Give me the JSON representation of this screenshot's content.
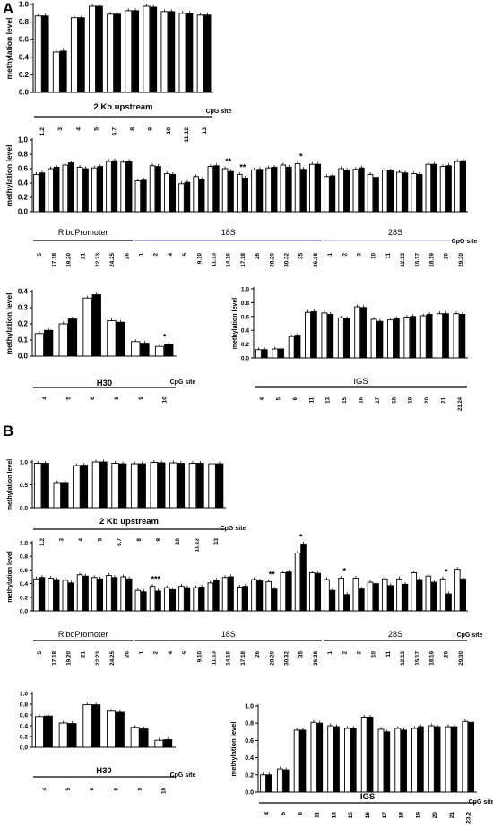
{
  "panels": [
    {
      "letter": "A"
    },
    {
      "letter": "B"
    }
  ],
  "colors": {
    "open_bar": "#ffffff",
    "filled_bar": "#000000",
    "outline": "#000000",
    "riboPromoter_line": "#000000",
    "s18_line": "#7b68c8",
    "s28_line": "#b8b8e6",
    "h30_line": "#000000",
    "igs_line": "#000000",
    "upstream_line": "#000000"
  },
  "chart_data": [
    {
      "id": "A-upstream",
      "panel": "A",
      "type": "bar",
      "ylabel": "methylation level",
      "ylim": [
        0,
        1.0
      ],
      "yticks": [
        0.0,
        0.2,
        0.4,
        0.6,
        0.8,
        1.0
      ],
      "xlabel": "CpG site",
      "categories": [
        "1.2",
        "3",
        "4",
        "5",
        "6.7",
        "8",
        "9",
        "10",
        "11.12",
        "13"
      ],
      "series": [
        {
          "fill": "open",
          "values": [
            0.87,
            0.46,
            0.85,
            0.98,
            0.89,
            0.93,
            0.98,
            0.92,
            0.9,
            0.88
          ]
        },
        {
          "fill": "filled",
          "values": [
            0.87,
            0.47,
            0.85,
            0.98,
            0.89,
            0.93,
            0.97,
            0.92,
            0.9,
            0.88
          ]
        }
      ],
      "regions": [
        {
          "label": "2 Kb upstream",
          "from": 0,
          "to": 9,
          "color": "upstream_line"
        }
      ]
    },
    {
      "id": "A-main",
      "panel": "A",
      "type": "bar",
      "ylabel": "methylation level",
      "ylim": [
        0,
        1.0
      ],
      "yticks": [
        0.0,
        0.2,
        0.4,
        0.6,
        0.8,
        1.0
      ],
      "xlabel": "CpG site",
      "categories": [
        "5",
        "17.18",
        "19.20",
        "21",
        "22.23",
        "24.25",
        "26",
        "1",
        "2",
        "4",
        "5",
        "9.10",
        "11.13",
        "14.16",
        "17.18",
        "26",
        "28.29",
        "30.32",
        "35",
        "36.38",
        "1",
        "2",
        "3",
        "10",
        "11",
        "12.13",
        "15.17",
        "18.19",
        "20",
        "29.30"
      ],
      "series": [
        {
          "fill": "open",
          "values": [
            0.52,
            0.6,
            0.65,
            0.62,
            0.61,
            0.7,
            0.69,
            0.43,
            0.64,
            0.53,
            0.39,
            0.49,
            0.63,
            0.6,
            0.52,
            0.58,
            0.61,
            0.65,
            0.67,
            0.66,
            0.49,
            0.6,
            0.59,
            0.52,
            0.58,
            0.55,
            0.53,
            0.66,
            0.63,
            0.7
          ]
        },
        {
          "fill": "filled",
          "values": [
            0.54,
            0.62,
            0.68,
            0.6,
            0.63,
            0.71,
            0.7,
            0.44,
            0.63,
            0.52,
            0.41,
            0.45,
            0.64,
            0.56,
            0.47,
            0.59,
            0.62,
            0.62,
            0.59,
            0.66,
            0.5,
            0.58,
            0.61,
            0.48,
            0.57,
            0.54,
            0.52,
            0.66,
            0.64,
            0.71
          ]
        }
      ],
      "annotations": [
        {
          "index": 13,
          "text": "**"
        },
        {
          "index": 14,
          "text": "**"
        },
        {
          "index": 18,
          "text": "*"
        }
      ],
      "regions": [
        {
          "label": "RiboPromoter",
          "from": 0,
          "to": 6,
          "color": "riboPromoter_line"
        },
        {
          "label": "18S",
          "from": 7,
          "to": 19,
          "color": "s18_line"
        },
        {
          "label": "28S",
          "from": 20,
          "to": 29,
          "color": "s28_line"
        }
      ]
    },
    {
      "id": "A-H30",
      "panel": "A",
      "type": "bar",
      "ylabel": "methylation level",
      "ylim": [
        0,
        0.4
      ],
      "yticks": [
        0.0,
        0.1,
        0.2,
        0.3,
        0.4
      ],
      "xlabel": "CpG site",
      "categories": [
        "4",
        "5",
        "6",
        "8",
        "9",
        "10"
      ],
      "series": [
        {
          "fill": "open",
          "values": [
            0.14,
            0.2,
            0.36,
            0.22,
            0.09,
            0.06
          ]
        },
        {
          "fill": "filled",
          "values": [
            0.16,
            0.23,
            0.38,
            0.21,
            0.08,
            0.075
          ]
        }
      ],
      "annotations": [
        {
          "index": 5,
          "text": "*"
        }
      ],
      "regions": [
        {
          "label": "H30",
          "from": 0,
          "to": 5,
          "color": "h30_line"
        }
      ]
    },
    {
      "id": "A-IGS",
      "panel": "A",
      "type": "bar",
      "ylabel": "methylation level",
      "ylim": [
        0,
        1.0
      ],
      "yticks": [
        0.0,
        0.2,
        0.4,
        0.6,
        0.8,
        1.0
      ],
      "xlabel": "",
      "categories": [
        "4",
        "5",
        "6",
        "11",
        "13",
        "15",
        "16",
        "17",
        "18",
        "19",
        "20",
        "21",
        "23.24"
      ],
      "series": [
        {
          "fill": "open",
          "values": [
            0.12,
            0.13,
            0.31,
            0.66,
            0.65,
            0.58,
            0.74,
            0.56,
            0.55,
            0.59,
            0.61,
            0.64,
            0.64
          ]
        },
        {
          "fill": "filled",
          "values": [
            0.12,
            0.13,
            0.33,
            0.67,
            0.63,
            0.57,
            0.73,
            0.53,
            0.57,
            0.6,
            0.63,
            0.64,
            0.63
          ]
        }
      ],
      "regions": [
        {
          "label": "IGS",
          "from": 0,
          "to": 12,
          "color": "igs_line"
        }
      ]
    },
    {
      "id": "B-upstream",
      "panel": "B",
      "type": "bar",
      "ylabel": "methylation level",
      "ylim": [
        0,
        1.0
      ],
      "yticks": [
        0.0,
        0.5,
        1.0
      ],
      "xlabel": "CpG site",
      "categories": [
        "1.2",
        "3",
        "4",
        "5",
        "6.7",
        "8",
        "9",
        "10",
        "11.12",
        "13"
      ],
      "series": [
        {
          "fill": "open",
          "values": [
            0.97,
            0.55,
            0.92,
            1.0,
            0.97,
            0.96,
            0.99,
            0.98,
            0.97,
            0.96
          ]
        },
        {
          "fill": "filled",
          "values": [
            0.97,
            0.55,
            0.93,
            1.0,
            0.96,
            0.96,
            0.98,
            0.97,
            0.97,
            0.96
          ]
        }
      ],
      "regions": [
        {
          "label": "2 Kb upstream",
          "from": 0,
          "to": 9,
          "color": "upstream_line"
        }
      ]
    },
    {
      "id": "B-main",
      "panel": "B",
      "type": "bar",
      "ylabel": "methylation level",
      "ylim": [
        0,
        1.0
      ],
      "yticks": [
        0.0,
        0.2,
        0.4,
        0.6,
        0.8,
        1.0
      ],
      "xlabel": "CpG site",
      "categories": [
        "5",
        "17.18",
        "19.20",
        "21",
        "22.23",
        "24.25",
        "26",
        "1",
        "2",
        "4",
        "5",
        "9.10",
        "11.13",
        "14.16",
        "17.18",
        "26",
        "28.29",
        "30.32",
        "35",
        "36.38",
        "1",
        "2",
        "3",
        "10",
        "11",
        "12.13",
        "15.17",
        "18.19",
        "20",
        "29.30"
      ],
      "series": [
        {
          "fill": "open",
          "values": [
            0.47,
            0.48,
            0.45,
            0.53,
            0.49,
            0.52,
            0.5,
            0.3,
            0.36,
            0.34,
            0.36,
            0.34,
            0.41,
            0.49,
            0.35,
            0.46,
            0.43,
            0.56,
            0.85,
            0.56,
            0.46,
            0.48,
            0.48,
            0.42,
            0.47,
            0.47,
            0.56,
            0.51,
            0.47,
            0.61
          ]
        },
        {
          "fill": "filled",
          "values": [
            0.49,
            0.46,
            0.41,
            0.51,
            0.47,
            0.49,
            0.47,
            0.28,
            0.29,
            0.31,
            0.34,
            0.35,
            0.45,
            0.5,
            0.36,
            0.44,
            0.32,
            0.57,
            0.98,
            0.55,
            0.3,
            0.24,
            0.32,
            0.4,
            0.37,
            0.39,
            0.46,
            0.42,
            0.25,
            0.47
          ]
        }
      ],
      "annotations": [
        {
          "index": 8,
          "text": "***"
        },
        {
          "index": 16,
          "text": "**"
        },
        {
          "index": 18,
          "text": "*"
        },
        {
          "index": 21,
          "text": "*"
        },
        {
          "index": 28,
          "text": "*"
        }
      ],
      "regions": [
        {
          "label": "RiboPromoter",
          "from": 0,
          "to": 6,
          "color": "riboPromoter_line"
        },
        {
          "label": "18S",
          "from": 7,
          "to": 19,
          "color": "riboPromoter_line"
        },
        {
          "label": "28S",
          "from": 20,
          "to": 29,
          "color": "riboPromoter_line"
        }
      ]
    },
    {
      "id": "B-H30",
      "panel": "B",
      "type": "bar",
      "ylabel": "",
      "ylim": [
        0,
        1.0
      ],
      "yticks": [
        0.0,
        0.2,
        0.4,
        0.6,
        0.8,
        1.0
      ],
      "xlabel": "CpG site",
      "categories": [
        "4",
        "5",
        "6",
        "8",
        "9",
        "10"
      ],
      "series": [
        {
          "fill": "open",
          "values": [
            0.57,
            0.45,
            0.79,
            0.67,
            0.37,
            0.13
          ]
        },
        {
          "fill": "filled",
          "values": [
            0.58,
            0.44,
            0.79,
            0.65,
            0.34,
            0.14
          ]
        }
      ],
      "regions": [
        {
          "label": "H30",
          "from": 0,
          "to": 5,
          "color": "h30_line"
        }
      ]
    },
    {
      "id": "B-IGS",
      "panel": "B",
      "type": "bar",
      "ylabel": "methylation level",
      "ylim": [
        0,
        1.0
      ],
      "yticks": [
        0.0,
        0.2,
        0.4,
        0.6,
        0.8,
        1.0
      ],
      "xlabel": "CpG site",
      "categories": [
        "4",
        "5",
        "6",
        "11",
        "13",
        "15",
        "16",
        "17",
        "18",
        "19",
        "20",
        "21",
        "23.2"
      ],
      "series": [
        {
          "fill": "open",
          "values": [
            0.2,
            0.27,
            0.72,
            0.81,
            0.77,
            0.74,
            0.87,
            0.73,
            0.74,
            0.74,
            0.77,
            0.76,
            0.82
          ]
        },
        {
          "fill": "filled",
          "values": [
            0.2,
            0.26,
            0.72,
            0.8,
            0.76,
            0.74,
            0.87,
            0.7,
            0.72,
            0.76,
            0.76,
            0.76,
            0.81
          ]
        }
      ],
      "regions": [
        {
          "label": "IGS",
          "from": 0,
          "to": 12,
          "color": "igs_line"
        }
      ]
    }
  ]
}
